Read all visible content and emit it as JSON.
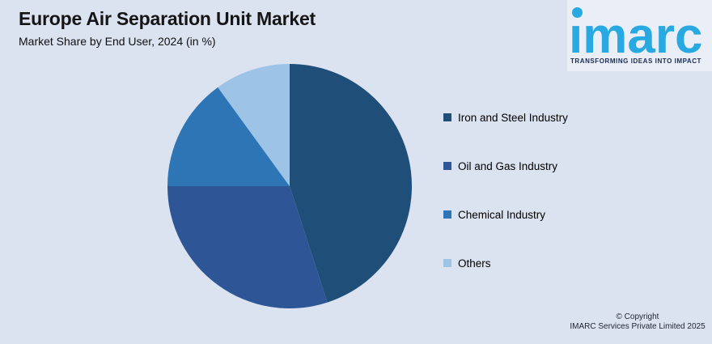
{
  "page": {
    "background_color": "#DBE2F0"
  },
  "header": {
    "title": "Europe Air Separation Unit Market",
    "subtitle": "Market Share by End User, 2024 (in %)"
  },
  "logo": {
    "brand": "imarc",
    "tagline": "TRANSFORMING IDEAS INTO IMPACT",
    "brand_color": "#29A9E1",
    "tagline_color": "#1B2B53"
  },
  "chart_data": {
    "type": "pie",
    "title": "Europe Air Separation Unit Market",
    "subtitle": "Market Share by End User, 2024 (in %)",
    "labels": [
      "Iron and Steel Industry",
      "Oil and Gas Industry",
      "Chemical Industry",
      "Others"
    ],
    "values": [
      45,
      30,
      15,
      10
    ],
    "unit": "%",
    "colors": [
      "#1F4E79",
      "#2E5596",
      "#2E75B6",
      "#9DC3E6"
    ],
    "start_angle_deg": 0,
    "direction": "clockwise",
    "legend_position": "right",
    "data_labels_shown": false
  },
  "footer": {
    "copyright_line1": "© Copyright",
    "copyright_line2": "IMARC Services Private Limited 2025"
  }
}
